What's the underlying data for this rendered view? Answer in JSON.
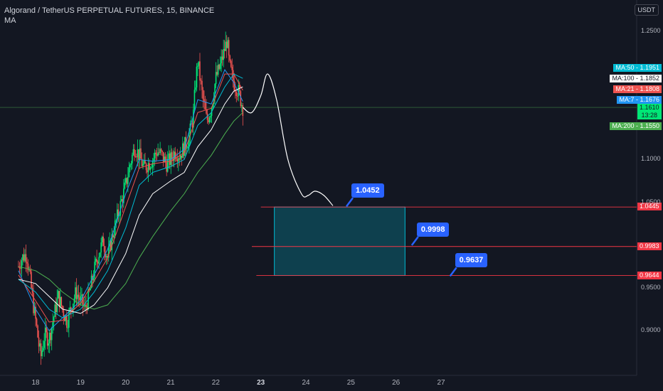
{
  "header": {
    "title": "Algorand / TetherUS PERPETUAL FUTURES, 15, BINANCE",
    "indicator": "MA"
  },
  "currency": "USDT",
  "colors": {
    "background": "#131722",
    "up": "#26a69a",
    "green_wick": "#00e676",
    "ma7": "#2196f3",
    "ma21": "#ef5350",
    "ma50": "#00bcd4",
    "ma100": "#ffffff",
    "ma200": "#4caf50",
    "level": "#f23645",
    "box": "#00bcd4",
    "callout": "#2962ff",
    "path": "#ffffff"
  },
  "chart_data": {
    "type": "line",
    "title": "Algorand / TetherUS PERPETUAL FUTURES, 15, BINANCE",
    "ylim": [
      0.86,
      1.27
    ],
    "y_ticks": [
      "1.2500",
      "1.1000",
      "1.0500",
      "0.9500",
      "0.9000"
    ],
    "x_ticks": [
      "18",
      "19",
      "20",
      "21",
      "22",
      "23",
      "24",
      "25",
      "26",
      "27"
    ],
    "x_range": [
      17.6,
      28.3
    ],
    "current_price": "1.1610",
    "countdown": "13:28",
    "price_series": [
      [
        17.62,
        0.975
      ],
      [
        17.7,
        0.985
      ],
      [
        17.8,
        0.99
      ],
      [
        17.88,
        0.96
      ],
      [
        17.95,
        0.93
      ],
      [
        18.02,
        0.905
      ],
      [
        18.08,
        0.88
      ],
      [
        18.12,
        0.87
      ],
      [
        18.2,
        0.895
      ],
      [
        18.3,
        0.89
      ],
      [
        18.4,
        0.915
      ],
      [
        18.5,
        0.94
      ],
      [
        18.6,
        0.925
      ],
      [
        18.7,
        0.91
      ],
      [
        18.8,
        0.93
      ],
      [
        18.9,
        0.945
      ],
      [
        19.0,
        0.935
      ],
      [
        19.1,
        0.925
      ],
      [
        19.2,
        0.945
      ],
      [
        19.3,
        0.97
      ],
      [
        19.4,
        0.99
      ],
      [
        19.5,
        1.005
      ],
      [
        19.6,
        0.985
      ],
      [
        19.7,
        1.01
      ],
      [
        19.8,
        1.03
      ],
      [
        19.9,
        1.05
      ],
      [
        20.0,
        1.07
      ],
      [
        20.1,
        1.095
      ],
      [
        20.2,
        1.115
      ],
      [
        20.3,
        1.105
      ],
      [
        20.4,
        1.09
      ],
      [
        20.5,
        1.095
      ],
      [
        20.6,
        1.1
      ],
      [
        20.7,
        1.11
      ],
      [
        20.8,
        1.105
      ],
      [
        20.9,
        1.095
      ],
      [
        21.0,
        1.1
      ],
      [
        21.1,
        1.11
      ],
      [
        21.2,
        1.105
      ],
      [
        21.3,
        1.115
      ],
      [
        21.4,
        1.125
      ],
      [
        21.5,
        1.15
      ],
      [
        21.55,
        1.19
      ],
      [
        21.6,
        1.215
      ],
      [
        21.7,
        1.175
      ],
      [
        21.8,
        1.145
      ],
      [
        21.9,
        1.16
      ],
      [
        22.0,
        1.195
      ],
      [
        22.1,
        1.21
      ],
      [
        22.2,
        1.23
      ],
      [
        22.25,
        1.24
      ],
      [
        22.3,
        1.21
      ],
      [
        22.4,
        1.19
      ],
      [
        22.5,
        1.18
      ],
      [
        22.6,
        1.161
      ]
    ],
    "series": [
      {
        "name": "MA:7",
        "value": "1.1676",
        "x": [
          17.62,
          18.0,
          18.3,
          18.6,
          19.0,
          19.3,
          19.6,
          20.0,
          20.3,
          20.6,
          21.0,
          21.3,
          21.6,
          21.9,
          22.2,
          22.4,
          22.6
        ],
        "y": [
          0.97,
          0.925,
          0.9,
          0.915,
          0.935,
          0.965,
          0.995,
          1.06,
          1.1,
          1.098,
          1.1,
          1.112,
          1.17,
          1.165,
          1.205,
          1.19,
          1.168
        ]
      },
      {
        "name": "MA:21",
        "value": "1.1808",
        "x": [
          17.62,
          18.0,
          18.3,
          18.6,
          19.0,
          19.3,
          19.6,
          20.0,
          20.3,
          20.6,
          21.0,
          21.3,
          21.6,
          21.9,
          22.2,
          22.4,
          22.6
        ],
        "y": [
          0.965,
          0.935,
          0.91,
          0.912,
          0.932,
          0.958,
          0.985,
          1.045,
          1.09,
          1.095,
          1.098,
          1.108,
          1.155,
          1.16,
          1.2,
          1.2,
          1.181
        ]
      },
      {
        "name": "MA:50",
        "value": "1.1951",
        "x": [
          17.62,
          18.0,
          18.3,
          18.6,
          19.0,
          19.3,
          19.6,
          20.0,
          20.3,
          20.6,
          21.0,
          21.3,
          21.6,
          21.9,
          22.2,
          22.4,
          22.6
        ],
        "y": [
          0.96,
          0.945,
          0.925,
          0.915,
          0.925,
          0.945,
          0.97,
          1.02,
          1.07,
          1.085,
          1.092,
          1.1,
          1.14,
          1.155,
          1.185,
          1.2,
          1.195
        ]
      },
      {
        "name": "MA:100",
        "value": "1.1852",
        "x": [
          17.62,
          18.0,
          18.3,
          18.6,
          19.0,
          19.3,
          19.6,
          20.0,
          20.3,
          20.6,
          21.0,
          21.3,
          21.6,
          21.9,
          22.2,
          22.4,
          22.6
        ],
        "y": [
          0.96,
          0.955,
          0.94,
          0.925,
          0.92,
          0.93,
          0.95,
          0.99,
          1.035,
          1.06,
          1.075,
          1.085,
          1.115,
          1.135,
          1.165,
          1.18,
          1.185
        ]
      },
      {
        "name": "MA:200",
        "value": "1.1550",
        "x": [
          17.62,
          18.0,
          18.3,
          18.6,
          19.0,
          19.3,
          19.6,
          20.0,
          20.3,
          20.6,
          21.0,
          21.3,
          21.6,
          21.9,
          22.2,
          22.4,
          22.6
        ],
        "y": [
          0.975,
          0.97,
          0.96,
          0.945,
          0.93,
          0.925,
          0.93,
          0.955,
          0.985,
          1.01,
          1.04,
          1.06,
          1.085,
          1.105,
          1.13,
          1.145,
          1.155
        ]
      }
    ],
    "projection": {
      "x": [
        22.6,
        22.8,
        23.0,
        23.15,
        23.35,
        23.6,
        23.9,
        24.05,
        24.2,
        24.4,
        24.6
      ],
      "y": [
        1.161,
        1.155,
        1.175,
        1.2,
        1.17,
        1.1,
        1.06,
        1.058,
        1.063,
        1.058,
        1.046
      ]
    },
    "levels": [
      {
        "value": "1.0445",
        "y": 1.0445,
        "x_start": 23.0
      },
      {
        "value": "0.9983",
        "y": 0.9983,
        "x_start": 22.8
      },
      {
        "value": "0.9644",
        "y": 0.9644,
        "x_start": 22.9
      }
    ],
    "target_box": {
      "x0": 23.3,
      "x1": 26.2,
      "y0": 1.0445,
      "y1": 0.9644
    },
    "callouts": [
      {
        "label": "1.0452",
        "x": 24.9,
        "y": 1.0452
      },
      {
        "label": "0.9998",
        "x": 26.35,
        "y": 0.9998
      },
      {
        "label": "0.9637",
        "x": 27.2,
        "y": 0.9637
      }
    ]
  }
}
